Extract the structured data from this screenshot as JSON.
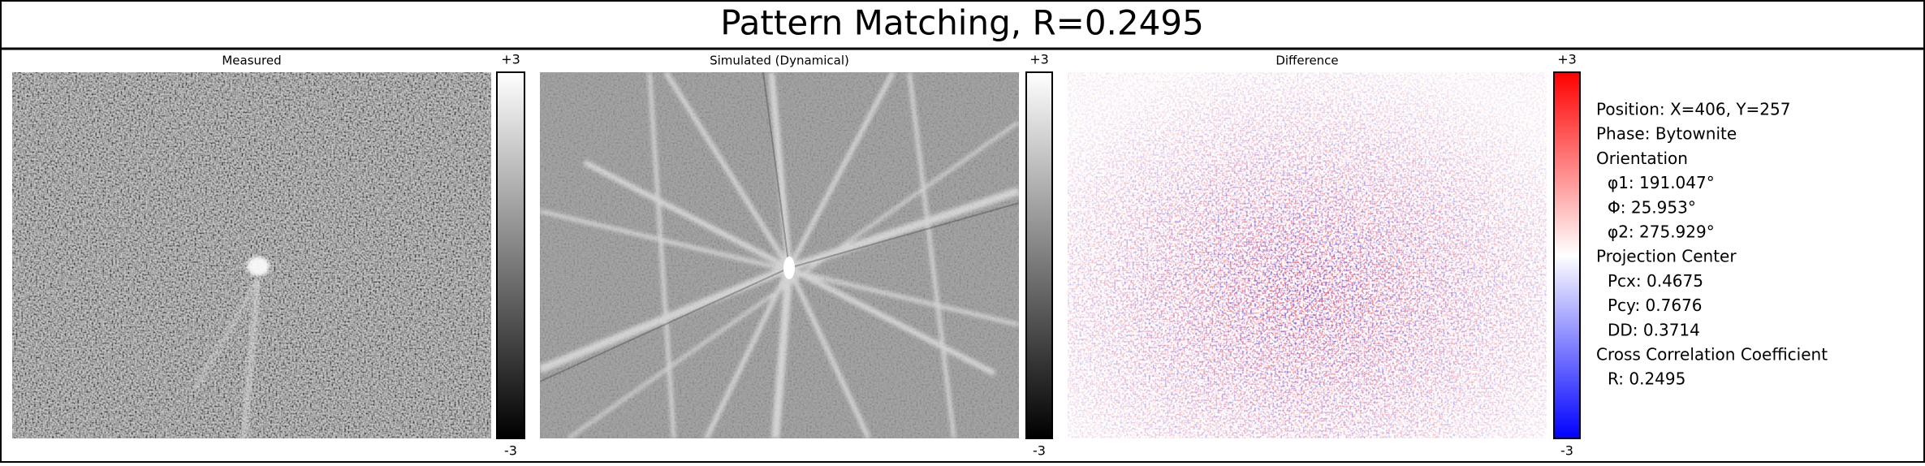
{
  "title": "Pattern Matching, R=0.2495",
  "panels": [
    {
      "label": "Measured",
      "colorbar_max": "+3",
      "colorbar_min": "-3"
    },
    {
      "label": "Simulated (Dynamical)",
      "colorbar_max": "+3",
      "colorbar_min": "-3"
    },
    {
      "label": "Difference",
      "colorbar_max": "+3",
      "colorbar_min": "-3"
    }
  ],
  "info": {
    "position": "Position: X=406, Y=257",
    "phase": "Phase: Bytownite",
    "sections": [
      {
        "heading": "Orientation",
        "items": [
          "φ1: 191.047°",
          "Φ: 25.953°",
          "φ2: 275.929°"
        ]
      },
      {
        "heading": "Projection Center",
        "items": [
          "Pcx: 0.4675",
          "Pcy: 0.7676",
          "DD: 0.3714"
        ]
      },
      {
        "heading": "Cross Correlation Coefficient",
        "items": [
          "R: 0.2495"
        ]
      }
    ]
  }
}
